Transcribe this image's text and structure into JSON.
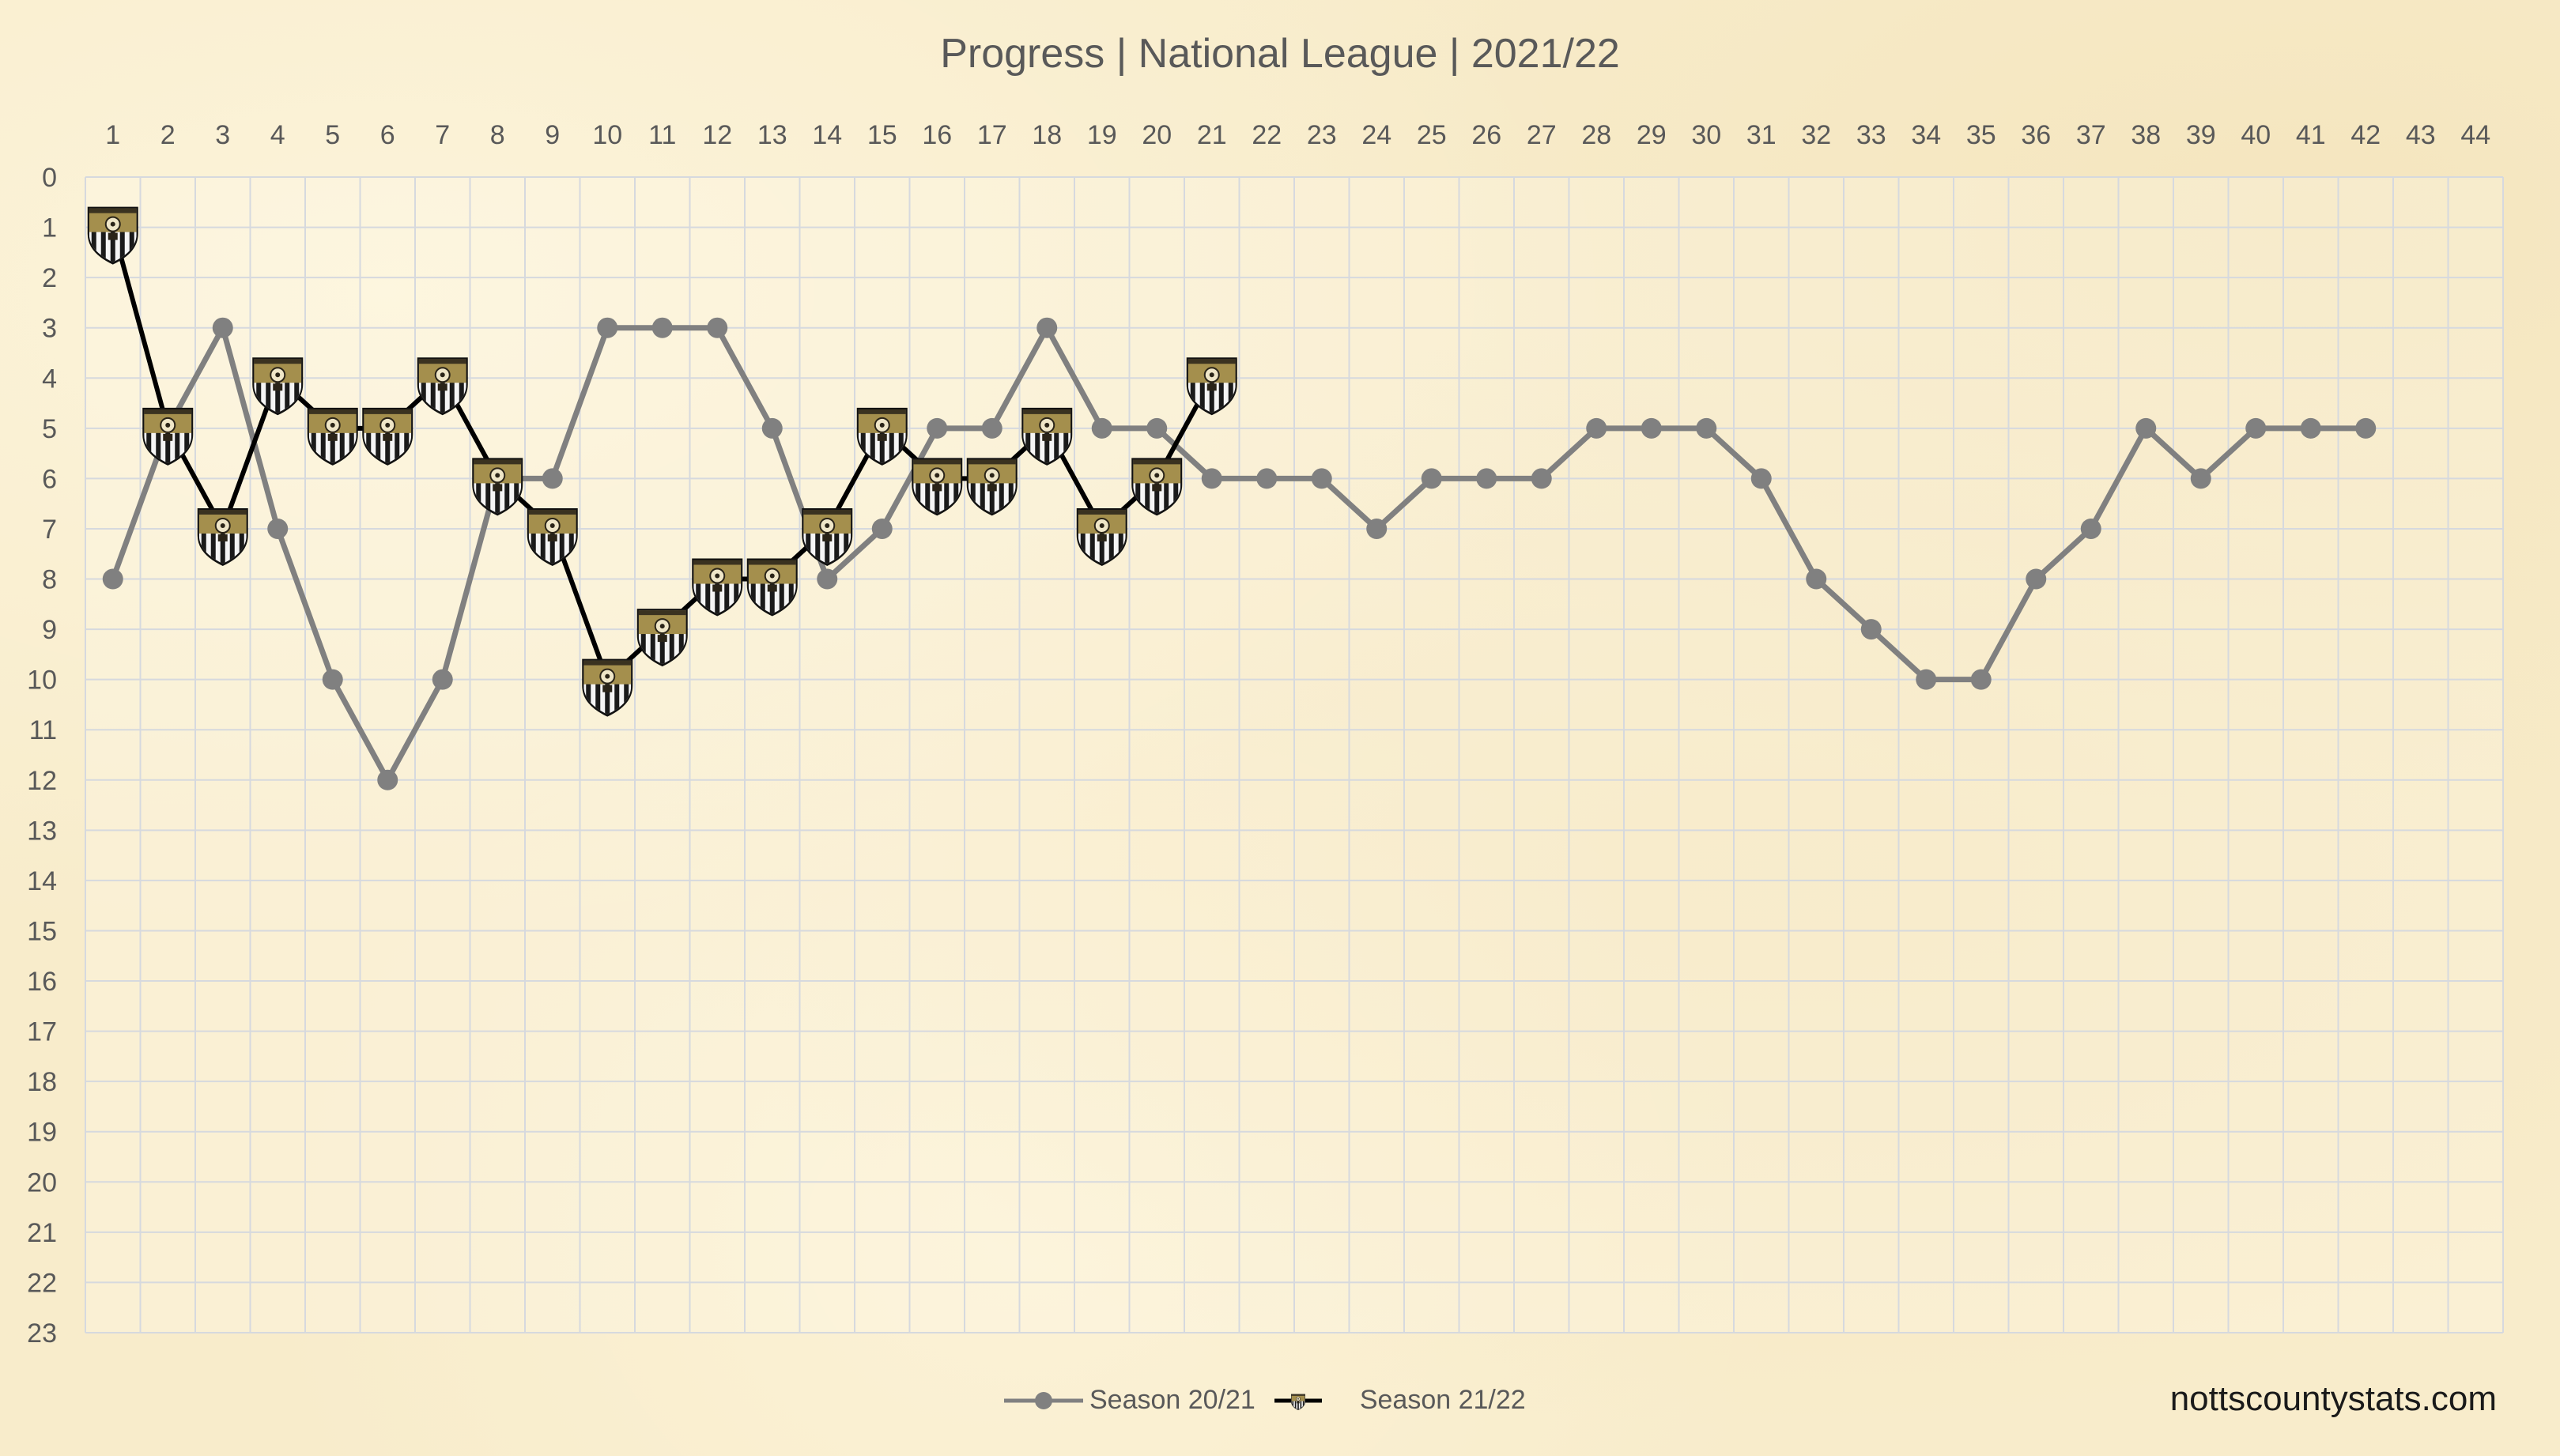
{
  "chart_data": {
    "type": "line",
    "title": "Progress | National League | 2021/22",
    "xlabel": "",
    "ylabel": "",
    "x_ticks": [
      1,
      2,
      3,
      4,
      5,
      6,
      7,
      8,
      9,
      10,
      11,
      12,
      13,
      14,
      15,
      16,
      17,
      18,
      19,
      20,
      21,
      22,
      23,
      24,
      25,
      26,
      27,
      28,
      29,
      30,
      31,
      32,
      33,
      34,
      35,
      36,
      37,
      38,
      39,
      40,
      41,
      42,
      43,
      44
    ],
    "y_ticks": [
      0,
      1,
      2,
      3,
      4,
      5,
      6,
      7,
      8,
      9,
      10,
      11,
      12,
      13,
      14,
      15,
      16,
      17,
      18,
      19,
      20,
      21,
      22,
      23
    ],
    "xlim": [
      1,
      44
    ],
    "ylim": [
      0,
      23
    ],
    "y_inverted": true,
    "x_axis_position": "top",
    "grid": true,
    "legend_position": "bottom-center",
    "series": [
      {
        "name": "Season 20/21",
        "color": "#808080",
        "marker": "circle",
        "x": [
          1,
          2,
          3,
          4,
          5,
          6,
          7,
          8,
          9,
          10,
          11,
          12,
          13,
          14,
          15,
          16,
          17,
          18,
          19,
          20,
          21,
          22,
          23,
          24,
          25,
          26,
          27,
          28,
          29,
          30,
          31,
          32,
          33,
          34,
          35,
          36,
          37,
          38,
          39,
          40,
          41,
          42
        ],
        "values": [
          8,
          5,
          3,
          7,
          10,
          12,
          10,
          6,
          6,
          3,
          3,
          3,
          5,
          8,
          7,
          5,
          5,
          3,
          5,
          5,
          6,
          6,
          6,
          7,
          6,
          6,
          6,
          5,
          5,
          5,
          6,
          8,
          9,
          10,
          10,
          8,
          7,
          5,
          6,
          5,
          5,
          5
        ]
      },
      {
        "name": "Season 21/22",
        "color": "#000000",
        "marker": "club-crest-icon",
        "x": [
          1,
          2,
          3,
          4,
          5,
          6,
          7,
          8,
          9,
          10,
          11,
          12,
          13,
          14,
          15,
          16,
          17,
          18,
          19,
          20,
          21
        ],
        "values": [
          1,
          5,
          7,
          4,
          5,
          5,
          4,
          6,
          7,
          10,
          9,
          8,
          8,
          7,
          5,
          6,
          6,
          5,
          7,
          6,
          4
        ]
      }
    ]
  },
  "watermark": "nottscountystats.com",
  "colors": {
    "background": "#f8eccb",
    "grid": "#d6d9de",
    "text": "#595959",
    "crest_gold": "#a48f4d",
    "crest_dark": "#1e1a12"
  }
}
